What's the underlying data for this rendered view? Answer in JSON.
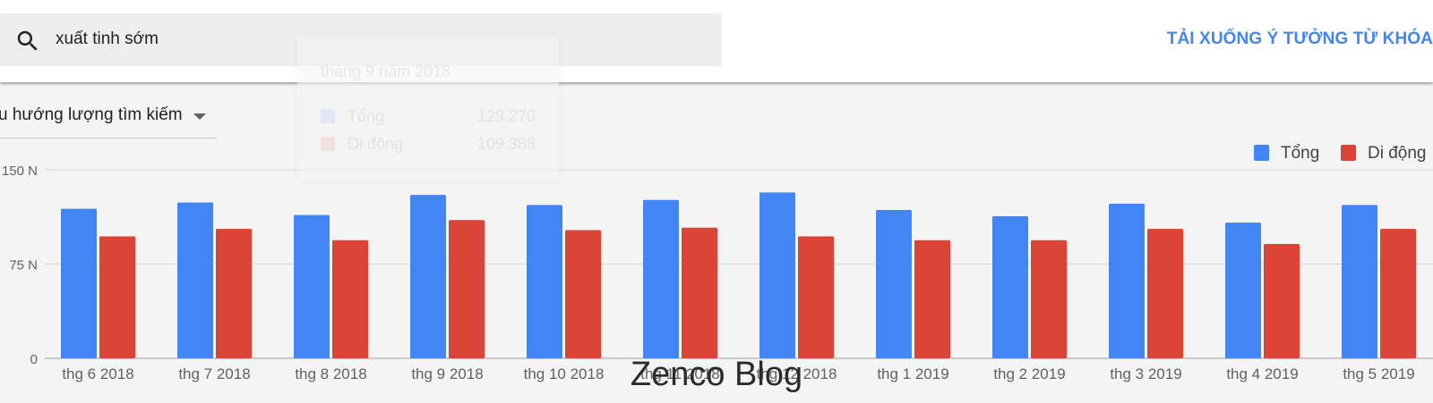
{
  "search": {
    "query": "xuất tinh sớm"
  },
  "download_label": "TẢI XUỐNG Ý TƯỞNG TỪ KHÓA",
  "trend_selector": {
    "selected": "u hướng lượng tìm kiếm"
  },
  "tooltip": {
    "title": "tháng 9 năm 2018",
    "rows": [
      {
        "name": "Tổng",
        "value": "129.270"
      },
      {
        "name": "Di động",
        "value": "109.388"
      }
    ]
  },
  "watermark": "Zenco Blog",
  "colors": {
    "total": "#4285f4",
    "mobile": "#db4437",
    "link": "#4285f4"
  },
  "chart_data": {
    "type": "bar",
    "categories": [
      "thg 6 2018",
      "thg 7 2018",
      "thg 8 2018",
      "thg 9 2018",
      "thg 10 2018",
      "thg 11 2018",
      "thg 12 2018",
      "thg 1 2019",
      "thg 2 2019",
      "thg 3 2019",
      "thg 4 2019",
      "thg 5 2019"
    ],
    "series": [
      {
        "name": "Tổng",
        "color": "#4285f4",
        "values": [
          119000,
          124000,
          114000,
          130000,
          122000,
          126000,
          132000,
          118000,
          113000,
          123000,
          108000,
          122000
        ]
      },
      {
        "name": "Di động",
        "color": "#db4437",
        "values": [
          97000,
          103000,
          94000,
          110000,
          102000,
          104000,
          97000,
          94000,
          94000,
          103000,
          91000,
          103000
        ]
      }
    ],
    "y_ticks": [
      {
        "value": 0,
        "label": "0"
      },
      {
        "value": 75000,
        "label": "75 N"
      },
      {
        "value": 150000,
        "label": "150 N"
      }
    ],
    "ylim": [
      0,
      150000
    ],
    "grid": true,
    "legend_position": "top-right"
  }
}
